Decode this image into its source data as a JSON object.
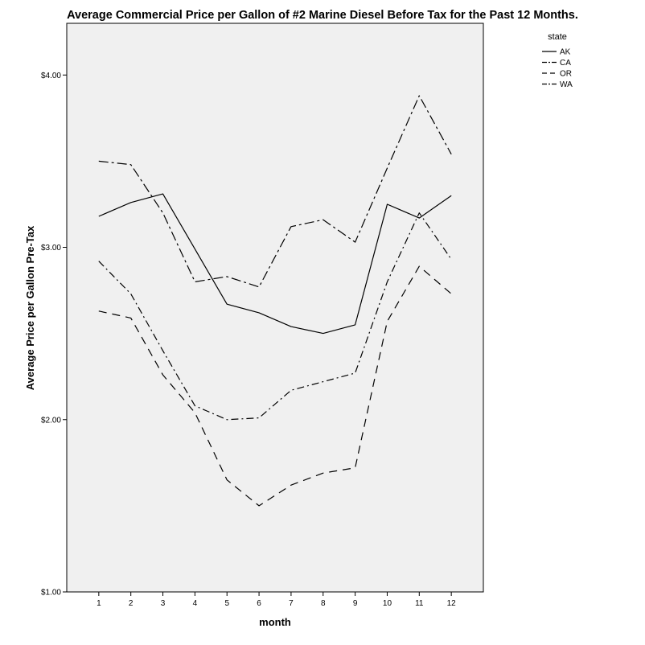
{
  "chart_data": {
    "type": "line",
    "title": "Average Commercial Price per Gallon of #2 Marine Diesel Before Tax for the Past 12 Months.",
    "xlabel": "month",
    "ylabel": "Average Price per Gallon Pre-Tax",
    "x": [
      1,
      2,
      3,
      4,
      5,
      6,
      7,
      8,
      9,
      10,
      11,
      12
    ],
    "xlim": [
      0,
      13
    ],
    "ylim": [
      1.0,
      4.3
    ],
    "yticks": [
      1.0,
      2.0,
      3.0,
      4.0
    ],
    "ytick_labels": [
      "$1.00",
      "$2.00",
      "$3.00",
      "$4.00"
    ],
    "legend_title": "state",
    "legend_position": "top-right, outside plot",
    "grid": false,
    "plot_background": "#f0f0f0",
    "series": [
      {
        "name": "AK",
        "dash": "solid",
        "values": [
          3.18,
          3.26,
          3.31,
          2.99,
          2.67,
          2.62,
          2.54,
          2.5,
          2.55,
          3.25,
          3.17,
          3.3
        ]
      },
      {
        "name": "CA",
        "dash": "dashdot",
        "values": [
          2.92,
          2.73,
          2.4,
          2.08,
          2.0,
          2.01,
          2.17,
          2.22,
          2.27,
          2.8,
          3.2,
          2.93
        ]
      },
      {
        "name": "OR",
        "dash": "dashed",
        "values": [
          2.63,
          2.59,
          2.26,
          2.04,
          1.65,
          1.5,
          1.62,
          1.69,
          1.72,
          2.57,
          2.89,
          2.73
        ]
      },
      {
        "name": "WA",
        "dash": "dashdot-long",
        "values": [
          3.5,
          3.48,
          3.2,
          2.8,
          2.83,
          2.77,
          3.12,
          3.16,
          3.03,
          3.46,
          3.88,
          3.54
        ]
      }
    ]
  }
}
